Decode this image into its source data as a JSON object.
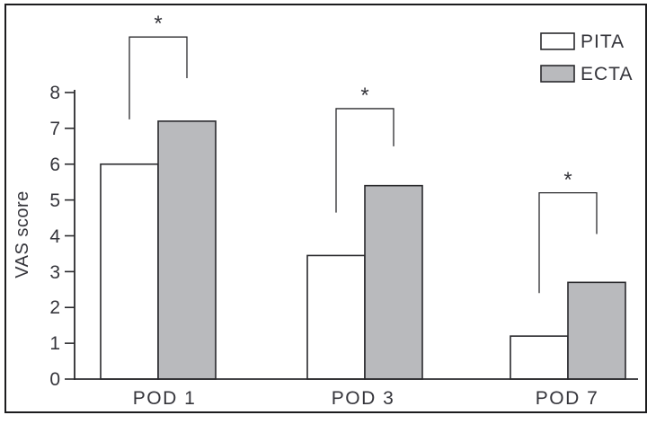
{
  "chart_data": {
    "type": "bar",
    "title": "",
    "xlabel": "",
    "ylabel": "VAS score",
    "categories": [
      "POD 1",
      "POD 3",
      "POD 7"
    ],
    "series": [
      {
        "name": "PITA",
        "values": [
          6.0,
          3.45,
          1.2
        ],
        "fill": "#ffffff"
      },
      {
        "name": "ECTA",
        "values": [
          7.2,
          5.4,
          2.7
        ],
        "fill": "#b9babd"
      }
    ],
    "yticks": [
      0,
      1,
      2,
      3,
      4,
      5,
      6,
      7,
      8
    ],
    "ylim": [
      0,
      9.7
    ],
    "grid": false,
    "legend_position": "top-right",
    "significance": [
      {
        "label": "*",
        "category": "POD 1",
        "bracket_top": 9.55,
        "left_arm_bottom": 7.25,
        "right_arm_bottom": 8.4
      },
      {
        "label": "*",
        "category": "POD 3",
        "bracket_top": 7.55,
        "left_arm_bottom": 4.65,
        "right_arm_bottom": 6.5
      },
      {
        "label": "*",
        "category": "POD 7",
        "bracket_top": 5.2,
        "left_arm_bottom": 2.4,
        "right_arm_bottom": 4.05
      }
    ],
    "colors": {
      "pita_fill": "#ffffff",
      "ecta_fill": "#b9babd",
      "line": "#2a2a2d",
      "text": "#35353b",
      "border": "#1c1c1e",
      "background": "#ffffff"
    }
  }
}
